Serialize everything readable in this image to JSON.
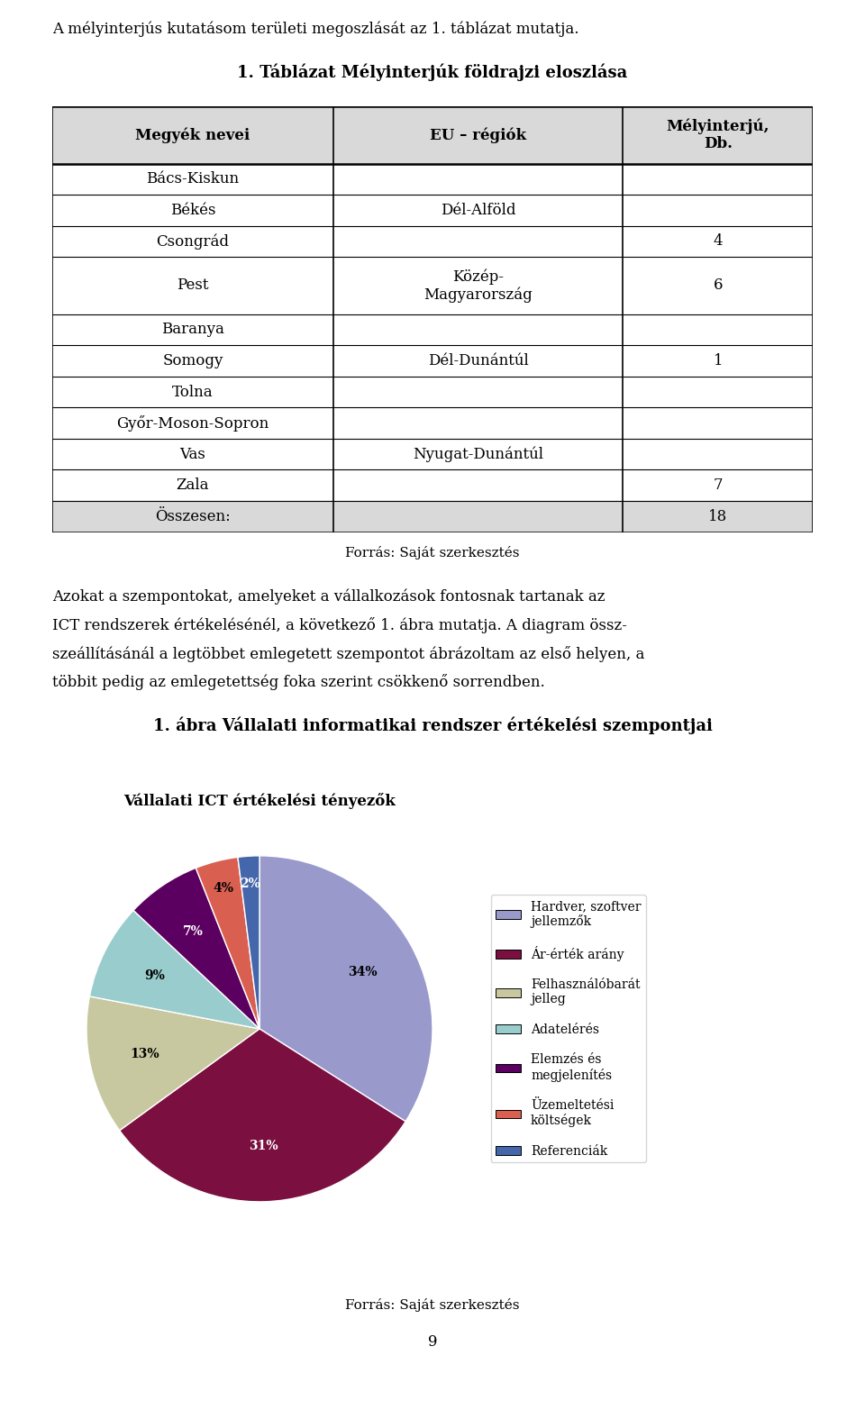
{
  "chart_data": [
    {
      "type": "text",
      "annotations": [
        "A mélyinterjús kutatásom területi megoszlását az 1. táblázat mutatja."
      ]
    },
    {
      "type": "table",
      "title": "1. Táblázat Mélyinterjúk földrajzi eloszlása",
      "columns": [
        "Megyék nevei",
        "EU – régiók",
        "Mélyinterjú,\nDb."
      ],
      "rows": [
        [
          "Bács-Kiskun",
          null,
          null
        ],
        [
          "Békés",
          "Dél-Alföld",
          null
        ],
        [
          "Csongrád",
          null,
          4
        ],
        [
          "Pest",
          "Közép-\nMagyarország",
          6
        ],
        [
          "Baranya",
          null,
          null
        ],
        [
          "Somogy",
          "Dél-Dunántúl",
          1
        ],
        [
          "Tolna",
          null,
          null
        ],
        [
          "Győr-Moson-Sopron",
          null,
          null
        ],
        [
          "Vas",
          "Nyugat-Dunántúl",
          null
        ],
        [
          "Zala",
          null,
          7
        ],
        [
          "Összesen:",
          null,
          18
        ]
      ],
      "annotations": [
        "Forrás: Saját szerkesztés"
      ]
    },
    {
      "type": "text",
      "annotations": [
        "Azokat a szempontokat, amelyeket a vállalkozások fontosnak tartanak az",
        "ICT rendszerek értékelésénél, a következő 1. ábra mutatja. A diagram össz-",
        "szeállításánál a legtöbbet emlegetett szempontot ábrázoltam az első helyen, a",
        "többit pedig az emlegetettség foka szerint csökkenő sorrendben."
      ]
    },
    {
      "type": "pie",
      "title": "1. ábra Vállalati informatikai rendszer értékelési szempontjai",
      "subtitle": "Vállalati ICT értékelési tényezők",
      "categories": [
        "Hardver, szoftver\njellemzők",
        "Ár-érték arány",
        "Felhasználóbarát\njelleg",
        "Adatelérés",
        "Elemzés és\nmegjelenítés",
        "Üzemeltetési\nköltségek",
        "Referenciák"
      ],
      "values": [
        34,
        31,
        13,
        9,
        7,
        4,
        2
      ],
      "value_labels": [
        "34%",
        "31%",
        "13%",
        "9%",
        "7%",
        "4%",
        "2%"
      ],
      "colors": [
        "#9999CC",
        "#7B1040",
        "#C8C8A0",
        "#99CCCC",
        "#5B0060",
        "#D96050",
        "#4466AA"
      ],
      "data_labels": true,
      "legend": "right",
      "annotations": [
        "Forrás: Saját szerkesztés"
      ]
    },
    {
      "type": "text",
      "annotations": [
        "9"
      ]
    }
  ]
}
